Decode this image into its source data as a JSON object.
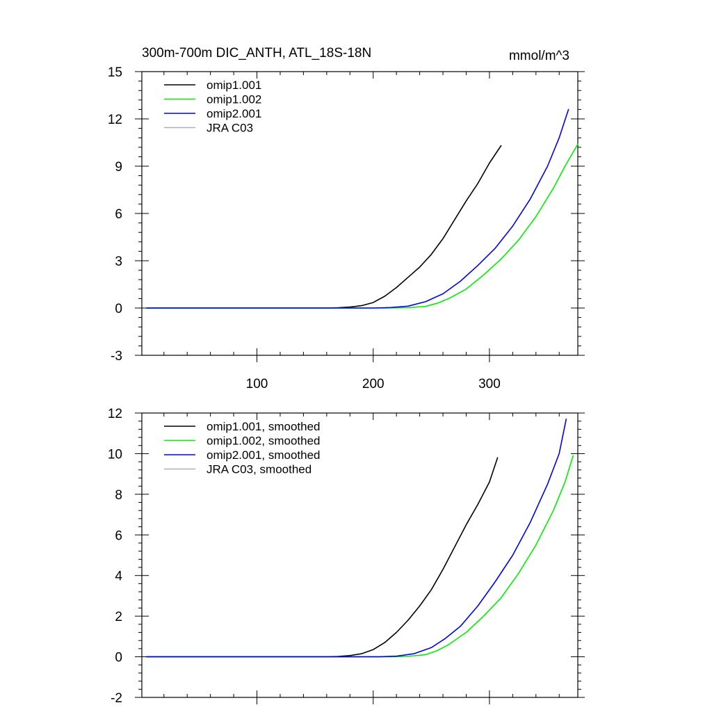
{
  "figure": {
    "title_left": "300m-700m DIC_ANTH, ATL_18S-18N",
    "title_right": "mmol/m^3"
  },
  "chart_data": [
    {
      "type": "line",
      "title": "300m-700m DIC_ANTH, ATL_18S-18N",
      "units": "mmol/m^3",
      "xlim": [
        1,
        376
      ],
      "ylim": [
        -3,
        15
      ],
      "xticks": [
        100,
        200,
        300
      ],
      "xtick_labels": [
        "100",
        "200",
        "300"
      ],
      "yticks": [
        -3,
        0,
        3,
        6,
        9,
        12,
        15
      ],
      "ytick_labels": [
        "-3",
        "0",
        "3",
        "6",
        "9",
        "12",
        "15"
      ],
      "legend_position": "top-left",
      "series": [
        {
          "name": "omip1.001",
          "color": "#000000",
          "end": 310,
          "points": [
            [
              5,
              0
            ],
            [
              160,
              0
            ],
            [
              170,
              0.02
            ],
            [
              180,
              0.06
            ],
            [
              190,
              0.15
            ],
            [
              200,
              0.35
            ],
            [
              210,
              0.75
            ],
            [
              220,
              1.3
            ],
            [
              230,
              1.95
            ],
            [
              240,
              2.6
            ],
            [
              250,
              3.4
            ],
            [
              260,
              4.4
            ],
            [
              270,
              5.6
            ],
            [
              280,
              6.8
            ],
            [
              290,
              7.9
            ],
            [
              300,
              9.2
            ],
            [
              310,
              10.3
            ]
          ]
        },
        {
          "name": "omip1.002",
          "color": "#00ee00",
          "end": 376,
          "points": [
            [
              5,
              0
            ],
            [
              210,
              0
            ],
            [
              230,
              0.02
            ],
            [
              245,
              0.1
            ],
            [
              255,
              0.3
            ],
            [
              265,
              0.6
            ],
            [
              280,
              1.2
            ],
            [
              295,
              2.1
            ],
            [
              310,
              3.1
            ],
            [
              325,
              4.3
            ],
            [
              340,
              5.8
            ],
            [
              355,
              7.6
            ],
            [
              365,
              9.0
            ],
            [
              376,
              10.4
            ]
          ]
        },
        {
          "name": "omip2.001",
          "color": "#0000ee",
          "end": 368,
          "points": [
            [
              5,
              0
            ],
            [
              200,
              0
            ],
            [
              215,
              0.03
            ],
            [
              230,
              0.12
            ],
            [
              245,
              0.4
            ],
            [
              260,
              0.9
            ],
            [
              275,
              1.7
            ],
            [
              290,
              2.7
            ],
            [
              305,
              3.8
            ],
            [
              320,
              5.2
            ],
            [
              335,
              6.9
            ],
            [
              350,
              9.0
            ],
            [
              360,
              10.8
            ],
            [
              368,
              12.6
            ]
          ]
        },
        {
          "name": "JRA C03",
          "color": "#b0b0b0",
          "points": []
        }
      ]
    },
    {
      "type": "line",
      "title": "",
      "xlim": [
        1,
        376
      ],
      "ylim": [
        -2,
        12
      ],
      "xticks": [
        100,
        200,
        300
      ],
      "xtick_labels": [],
      "yticks": [
        -2,
        0,
        2,
        4,
        6,
        8,
        10,
        12
      ],
      "ytick_labels": [
        "-2",
        "0",
        "2",
        "4",
        "6",
        "8",
        "10",
        "12"
      ],
      "legend_position": "top-left",
      "series": [
        {
          "name": "omip1.001, smoothed",
          "color": "#000000",
          "points": [
            [
              5,
              0
            ],
            [
              160,
              0
            ],
            [
              170,
              0.02
            ],
            [
              180,
              0.06
            ],
            [
              190,
              0.15
            ],
            [
              200,
              0.35
            ],
            [
              210,
              0.7
            ],
            [
              220,
              1.2
            ],
            [
              230,
              1.8
            ],
            [
              240,
              2.5
            ],
            [
              250,
              3.3
            ],
            [
              260,
              4.3
            ],
            [
              270,
              5.4
            ],
            [
              280,
              6.5
            ],
            [
              290,
              7.5
            ],
            [
              300,
              8.6
            ],
            [
              307,
              9.8
            ]
          ]
        },
        {
          "name": "omip1.002, smoothed",
          "color": "#00ee00",
          "points": [
            [
              5,
              0
            ],
            [
              215,
              0
            ],
            [
              230,
              0.02
            ],
            [
              245,
              0.1
            ],
            [
              255,
              0.3
            ],
            [
              265,
              0.6
            ],
            [
              280,
              1.2
            ],
            [
              295,
              2.0
            ],
            [
              310,
              2.9
            ],
            [
              325,
              4.1
            ],
            [
              340,
              5.5
            ],
            [
              355,
              7.2
            ],
            [
              365,
              8.6
            ],
            [
              372,
              9.9
            ]
          ]
        },
        {
          "name": "omip2.001, smoothed",
          "color": "#0000ee",
          "points": [
            [
              5,
              0
            ],
            [
              205,
              0
            ],
            [
              220,
              0.03
            ],
            [
              235,
              0.15
            ],
            [
              250,
              0.45
            ],
            [
              262,
              0.9
            ],
            [
              275,
              1.5
            ],
            [
              290,
              2.5
            ],
            [
              305,
              3.7
            ],
            [
              320,
              5.0
            ],
            [
              335,
              6.6
            ],
            [
              350,
              8.5
            ],
            [
              360,
              10.0
            ],
            [
              366,
              11.7
            ]
          ]
        },
        {
          "name": "JRA C03, smoothed",
          "color": "#b0b0b0",
          "points": []
        }
      ]
    }
  ]
}
